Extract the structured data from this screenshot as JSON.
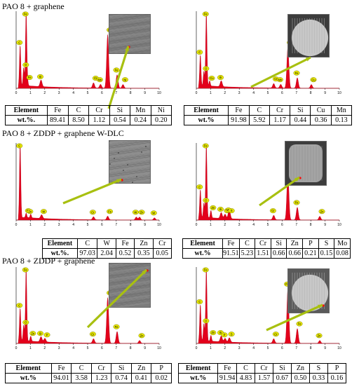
{
  "sections": [
    {
      "title": "PAO 8 + graphene"
    },
    {
      "title": "PAO 8 + ZDDP + graphene W-DLC"
    },
    {
      "title": "PAO 8 + ZDDP + graphene"
    }
  ],
  "table_labels": {
    "element": "Element",
    "wt": "wt.%"
  },
  "colors": {
    "spectrum_fill": "#e3001b",
    "label_bubble": "#e6e600",
    "arrow": "#a8c010"
  },
  "chart_data": [
    {
      "type": "area",
      "section": "PAO 8 + graphene",
      "xticks": [
        "0",
        "1",
        "2",
        "3",
        "4",
        "5",
        "6",
        "7",
        "8",
        "9",
        "10"
      ],
      "xlim": [
        0,
        10
      ],
      "peaks": [
        {
          "x": 0.28,
          "h": 0.55,
          "label": "C"
        },
        {
          "x": 0.53,
          "h": 0.25,
          "label": "O"
        },
        {
          "x": 0.7,
          "h": 1.0,
          "label": "Fe"
        },
        {
          "x": 0.79,
          "h": 0.08,
          "label": "Fe"
        },
        {
          "x": 1.74,
          "h": 0.09,
          "label": "Si"
        },
        {
          "x": 5.41,
          "h": 0.07,
          "label": "Cr"
        },
        {
          "x": 5.9,
          "h": 0.05,
          "label": "Mn"
        },
        {
          "x": 6.4,
          "h": 0.72,
          "label": "Fe"
        },
        {
          "x": 7.06,
          "h": 0.18,
          "label": "Fe"
        },
        {
          "x": 7.47,
          "h": 0.05,
          "label": "Ni"
        }
      ],
      "table": {
        "label": "wt.%.",
        "elements": [
          "Fe",
          "C",
          "Cr",
          "Si",
          "Mn",
          "Ni"
        ],
        "values": [
          "89.41",
          "8.50",
          "1.12",
          "0.54",
          "0.24",
          "0.20"
        ]
      }
    },
    {
      "type": "area",
      "section": "PAO 8 + graphene",
      "xticks": [
        "0",
        "1",
        "2",
        "3",
        "4",
        "5",
        "6",
        "7",
        "8",
        "9",
        "10"
      ],
      "xlim": [
        0,
        10
      ],
      "peaks": [
        {
          "x": 0.28,
          "h": 0.42,
          "label": "C"
        },
        {
          "x": 0.53,
          "h": 0.2,
          "label": "O"
        },
        {
          "x": 0.7,
          "h": 1.0,
          "label": "Fe"
        },
        {
          "x": 0.93,
          "h": 0.07,
          "label": "Cu"
        },
        {
          "x": 1.74,
          "h": 0.08,
          "label": "Si"
        },
        {
          "x": 5.41,
          "h": 0.06,
          "label": "Cr"
        },
        {
          "x": 5.9,
          "h": 0.05,
          "label": "Mn"
        },
        {
          "x": 6.4,
          "h": 0.55,
          "label": "Fe"
        },
        {
          "x": 7.06,
          "h": 0.14,
          "label": "Fe"
        },
        {
          "x": 8.04,
          "h": 0.05,
          "label": "Cu"
        }
      ],
      "table": {
        "label": "wt.%",
        "elements": [
          "Fe",
          "C",
          "Cr",
          "Si",
          "Cu",
          "Mn"
        ],
        "values": [
          "91.98",
          "5.92",
          "1.17",
          "0.44",
          "0.36",
          "0.13"
        ]
      }
    },
    {
      "type": "area",
      "section": "PAO 8 + ZDDP + graphene W-DLC",
      "xticks": [
        "0",
        "1",
        "2",
        "3",
        "4",
        "5",
        "6",
        "7",
        "8",
        "9",
        "10"
      ],
      "xlim": [
        0,
        10
      ],
      "peaks": [
        {
          "x": 0.28,
          "h": 1.0,
          "label": "C"
        },
        {
          "x": 0.7,
          "h": 0.06,
          "label": "Fe"
        },
        {
          "x": 1.02,
          "h": 0.05,
          "label": "Zn"
        },
        {
          "x": 1.78,
          "h": 0.05,
          "label": "W"
        },
        {
          "x": 5.41,
          "h": 0.04,
          "label": "Cr"
        },
        {
          "x": 6.4,
          "h": 0.05,
          "label": "Fe"
        },
        {
          "x": 8.4,
          "h": 0.04,
          "label": "W"
        },
        {
          "x": 8.63,
          "h": 0.04,
          "label": "Zn"
        },
        {
          "x": 9.67,
          "h": 0.03,
          "label": "W"
        }
      ],
      "table": {
        "label": "wt.%.",
        "elements": [
          "C",
          "W",
          "Fe",
          "Zn",
          "Cr"
        ],
        "values": [
          "97.03",
          "2.04",
          "0.52",
          "0.35",
          "0.05"
        ]
      }
    },
    {
      "type": "area",
      "section": "PAO 8 + ZDDP + graphene W-DLC",
      "xticks": [
        "0",
        "1",
        "2",
        "3",
        "4",
        "5",
        "6",
        "7",
        "8",
        "9",
        "10"
      ],
      "xlim": [
        0,
        10
      ],
      "peaks": [
        {
          "x": 0.28,
          "h": 0.38,
          "label": "C"
        },
        {
          "x": 0.53,
          "h": 0.2,
          "label": "O"
        },
        {
          "x": 0.7,
          "h": 1.0,
          "label": "Fe"
        },
        {
          "x": 1.02,
          "h": 0.1,
          "label": "Zn"
        },
        {
          "x": 1.74,
          "h": 0.08,
          "label": "Si"
        },
        {
          "x": 2.01,
          "h": 0.06,
          "label": "P"
        },
        {
          "x": 2.29,
          "h": 0.07,
          "label": "Mo"
        },
        {
          "x": 2.31,
          "h": 0.06,
          "label": "S"
        },
        {
          "x": 5.41,
          "h": 0.06,
          "label": "Cr"
        },
        {
          "x": 6.4,
          "h": 0.64,
          "label": "Fe"
        },
        {
          "x": 7.06,
          "h": 0.17,
          "label": "Fe"
        },
        {
          "x": 8.63,
          "h": 0.05,
          "label": "Zn"
        }
      ],
      "table": {
        "label": "wt.%",
        "elements": [
          "Fe",
          "C",
          "Cr",
          "Si",
          "Zn",
          "P",
          "S",
          "Mo"
        ],
        "values": [
          "91.51",
          "5.23",
          "1.51",
          "0.66",
          "0.66",
          "0.21",
          "0.15",
          "0.08"
        ]
      }
    },
    {
      "type": "area",
      "section": "PAO 8 + ZDDP + graphene",
      "xticks": [
        "0",
        "1",
        "2",
        "3",
        "4",
        "5",
        "6",
        "7",
        "8",
        "9",
        "10"
      ],
      "xlim": [
        0,
        10
      ],
      "peaks": [
        {
          "x": 0.28,
          "h": 0.45,
          "label": "C"
        },
        {
          "x": 0.53,
          "h": 0.22,
          "label": "O"
        },
        {
          "x": 0.7,
          "h": 1.0,
          "label": "Fe"
        },
        {
          "x": 1.02,
          "h": 0.07,
          "label": "Zn"
        },
        {
          "x": 1.74,
          "h": 0.07,
          "label": "Si"
        },
        {
          "x": 2.01,
          "h": 0.05,
          "label": "P"
        },
        {
          "x": 5.41,
          "h": 0.06,
          "label": "Cr"
        },
        {
          "x": 6.4,
          "h": 0.62,
          "label": "Fe"
        },
        {
          "x": 7.06,
          "h": 0.16,
          "label": "Fe"
        },
        {
          "x": 8.63,
          "h": 0.04,
          "label": "Zn"
        }
      ],
      "table": {
        "label": "wt.%",
        "elements": [
          "Fe",
          "C",
          "Cr",
          "Si",
          "Zn",
          "P"
        ],
        "values": [
          "94.01",
          "3.58",
          "1.23",
          "0.74",
          "0.41",
          "0.02"
        ]
      }
    },
    {
      "type": "area",
      "section": "PAO 8 + ZDDP + graphene",
      "xticks": [
        "0",
        "1",
        "2",
        "3",
        "4",
        "5",
        "6",
        "7",
        "8",
        "9",
        "10"
      ],
      "xlim": [
        0,
        10
      ],
      "peaks": [
        {
          "x": 0.28,
          "h": 0.5,
          "label": "C"
        },
        {
          "x": 0.53,
          "h": 0.24,
          "label": "O"
        },
        {
          "x": 0.7,
          "h": 1.0,
          "label": "Fe"
        },
        {
          "x": 1.02,
          "h": 0.08,
          "label": "Zn"
        },
        {
          "x": 1.74,
          "h": 0.08,
          "label": "Si"
        },
        {
          "x": 2.31,
          "h": 0.06,
          "label": "S"
        },
        {
          "x": 2.01,
          "h": 0.05,
          "label": "P"
        },
        {
          "x": 5.41,
          "h": 0.06,
          "label": "Cr"
        },
        {
          "x": 6.4,
          "h": 0.74,
          "label": "Fe"
        },
        {
          "x": 7.06,
          "h": 0.2,
          "label": "Fe"
        },
        {
          "x": 8.63,
          "h": 0.04,
          "label": "Zn"
        }
      ],
      "table": {
        "label": "wt.%",
        "elements": [
          "Fe",
          "C",
          "Cr",
          "Si",
          "Zn",
          "S",
          "P"
        ],
        "values": [
          "91.94",
          "4.83",
          "1.57",
          "0.67",
          "0.50",
          "0.33",
          "0.16"
        ]
      }
    }
  ]
}
